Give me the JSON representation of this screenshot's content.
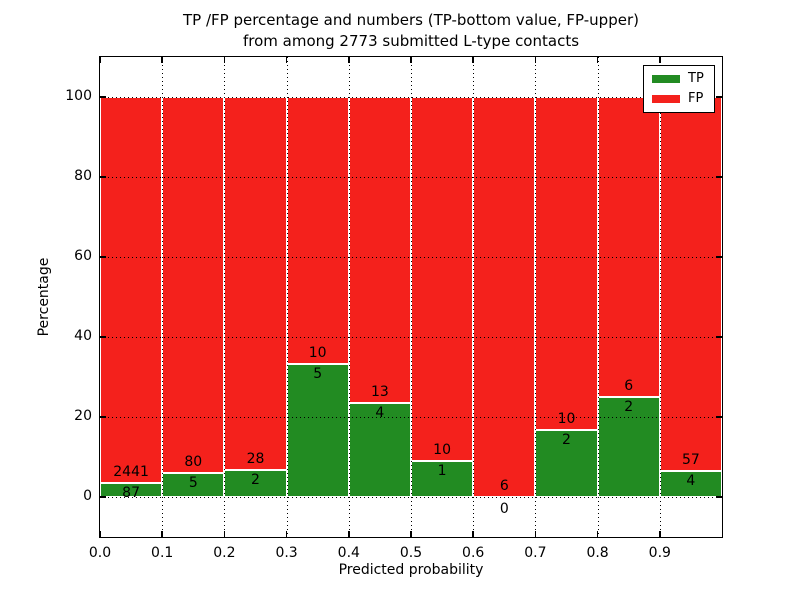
{
  "chart_data": {
    "type": "bar",
    "variant": "stacked-percentage-histogram",
    "title_line1": "TP /FP percentage and numbers (TP-bottom value, FP-upper)",
    "title_line2": "from among 2773 submitted L-type contacts",
    "xlabel": "Predicted probability",
    "ylabel": "Percentage",
    "xlim": [
      0.0,
      1.0
    ],
    "ylim": [
      -10,
      110
    ],
    "x_tick_labels": [
      "0.0",
      "0.1",
      "0.2",
      "0.3",
      "0.4",
      "0.5",
      "0.6",
      "0.7",
      "0.8",
      "0.9"
    ],
    "x_tick_values": [
      0.0,
      0.1,
      0.2,
      0.3,
      0.4,
      0.5,
      0.6,
      0.7,
      0.8,
      0.9
    ],
    "y_tick_labels": [
      "0",
      "20",
      "40",
      "60",
      "80",
      "100"
    ],
    "y_tick_values": [
      0,
      20,
      40,
      60,
      80,
      100
    ],
    "grid": "dotted black, drawn above bars",
    "legend_position": "upper-right",
    "total_contacts": 2773,
    "bin_width": 0.1,
    "categories": [
      "0.0-0.1",
      "0.1-0.2",
      "0.2-0.3",
      "0.3-0.4",
      "0.4-0.5",
      "0.5-0.6",
      "0.6-0.7",
      "0.7-0.8",
      "0.8-0.9",
      "0.9-1.0"
    ],
    "series": [
      {
        "name": "TP",
        "color": "#228b22",
        "counts": [
          87,
          5,
          2,
          5,
          4,
          1,
          0,
          2,
          2,
          4
        ]
      },
      {
        "name": "FP",
        "color": "#f4211c",
        "counts": [
          2441,
          80,
          28,
          10,
          13,
          10,
          6,
          10,
          6,
          57
        ]
      }
    ],
    "legend": {
      "entries": [
        {
          "label": "TP",
          "color": "#228b22"
        },
        {
          "label": "FP",
          "color": "#f4211c"
        }
      ]
    }
  },
  "colors": {
    "background": "#ffffff",
    "tp_green": "#228b22",
    "fp_red": "#f4211c",
    "bar_edge": "#ffffff",
    "axis": "#000000",
    "text": "#000000"
  }
}
